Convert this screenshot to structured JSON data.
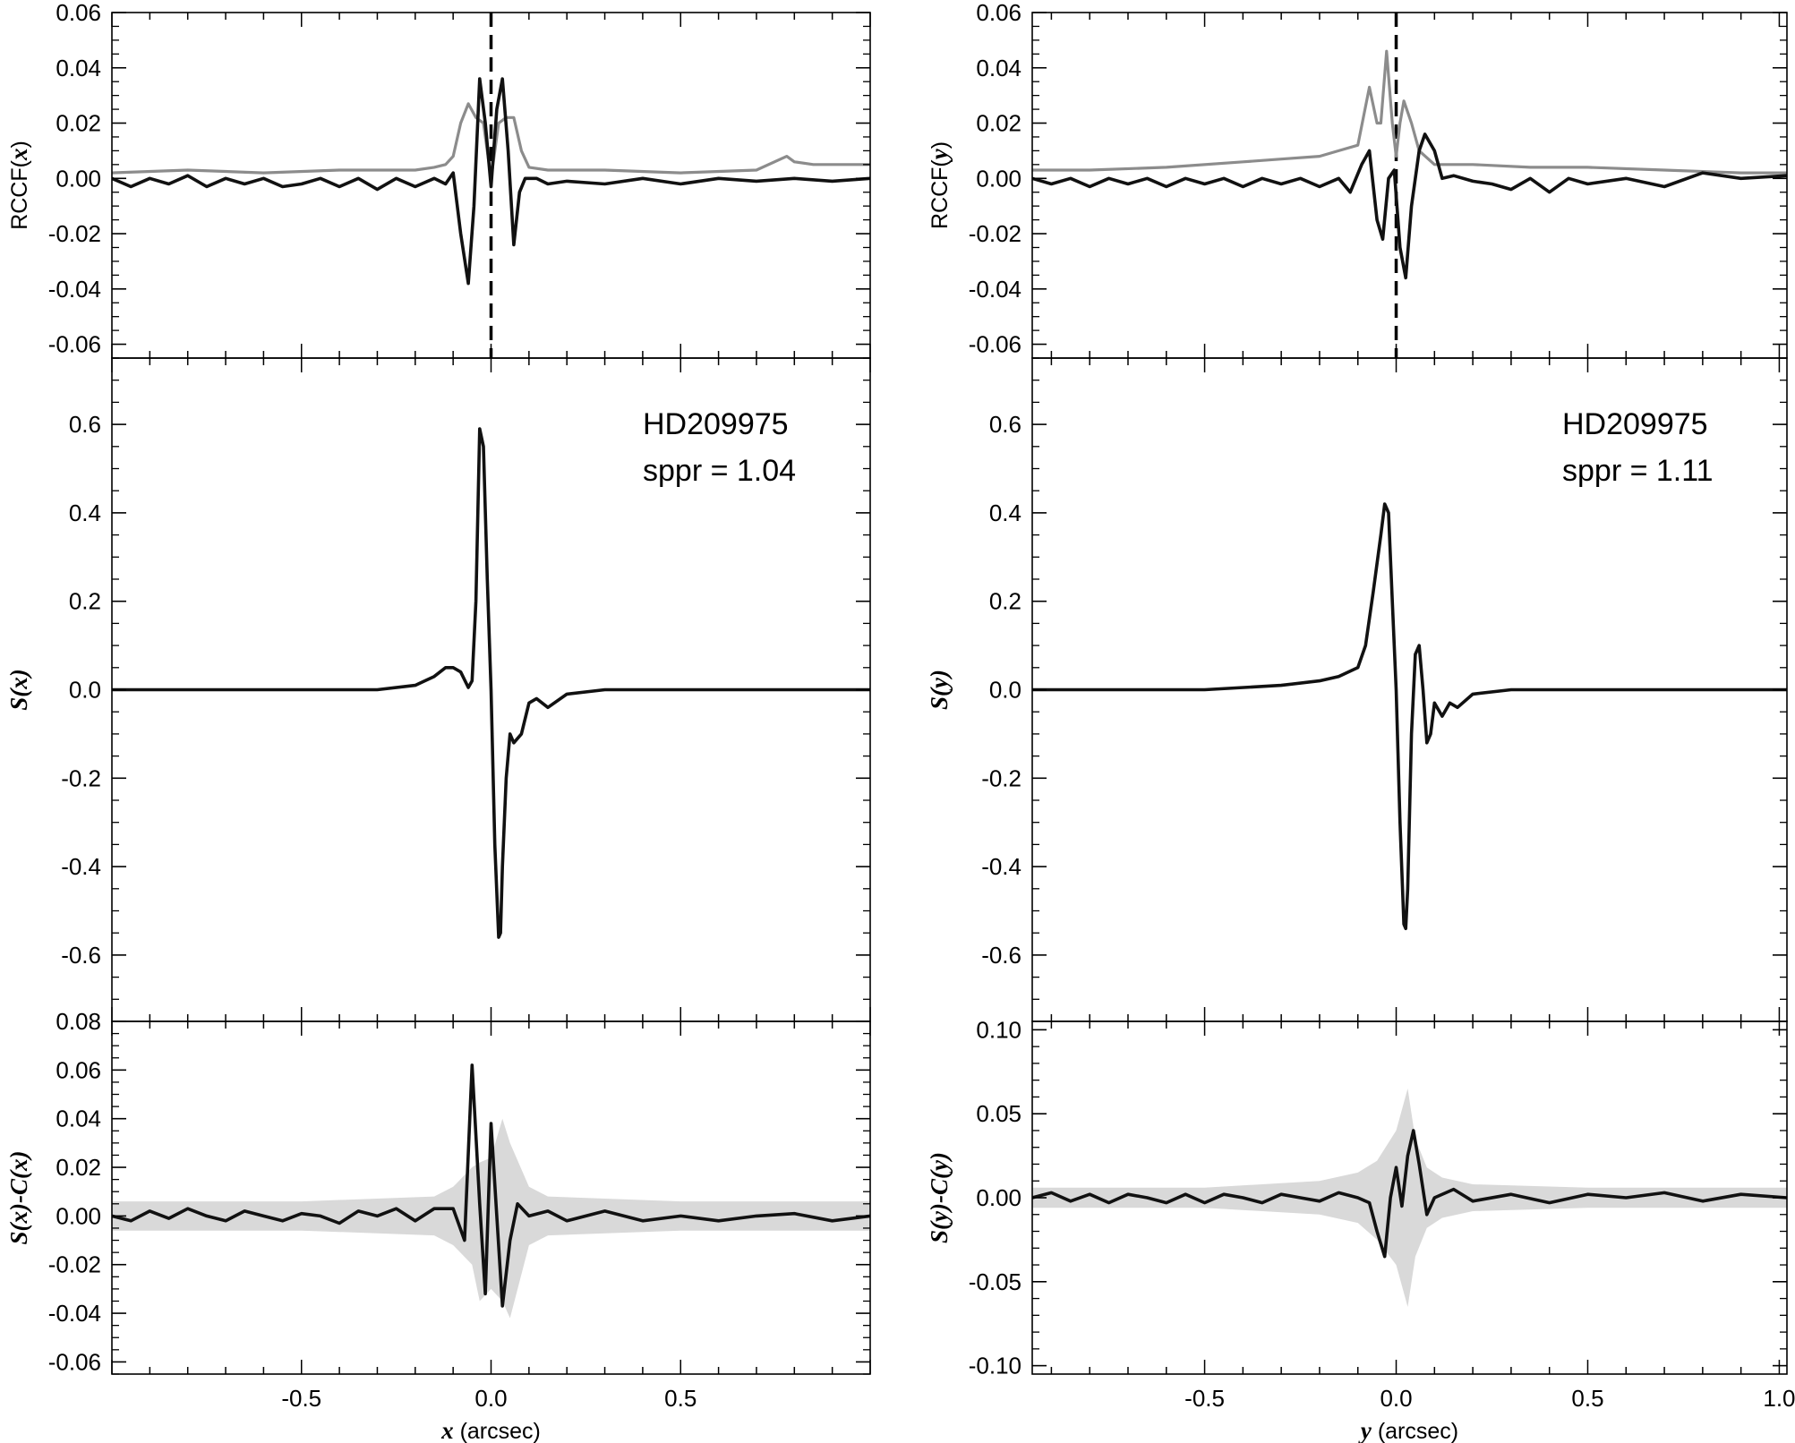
{
  "figure_colors": {
    "black_line": "#111111",
    "gray_line": "#8c8c8c",
    "band_fill": "#d9d9d9",
    "frame": "#000000"
  },
  "columns": [
    {
      "id": "x",
      "xlabel_var": "x",
      "xlabel_unit": " (arcsec)",
      "xlim": [
        -1.0,
        1.0
      ],
      "xticks": [
        -0.5,
        0.0,
        0.5
      ],
      "xtick_labels": [
        "-0.5",
        "0.0",
        "0.5"
      ]
    },
    {
      "id": "y",
      "xlabel_var": "y",
      "xlabel_unit": " (arcsec)",
      "xlim": [
        -0.95,
        1.02
      ],
      "xticks": [
        -0.5,
        0.0,
        0.5,
        1.0
      ],
      "xtick_labels": [
        "-0.5",
        "0.0",
        "0.5",
        "1.0"
      ]
    }
  ],
  "chart_data": [
    {
      "type": "line",
      "panel": "rccf-x",
      "column": 0,
      "row": 0,
      "ylabel": "RCCF(x)",
      "ylabel_parts": [
        "RCCF(",
        "x",
        ")"
      ],
      "ylim": [
        -0.065,
        0.06
      ],
      "yticks": [
        -0.06,
        -0.04,
        -0.02,
        0.0,
        0.02,
        0.04,
        0.06
      ],
      "ytick_labels": [
        "-0.06",
        "-0.04",
        "-0.02",
        "0.00",
        "0.02",
        "0.04",
        "0.06"
      ],
      "vline_x": 0.0,
      "series": [
        {
          "style": "gray",
          "x": [
            -1.0,
            -0.8,
            -0.6,
            -0.4,
            -0.2,
            -0.15,
            -0.12,
            -0.1,
            -0.08,
            -0.06,
            -0.04,
            -0.02,
            0.0,
            0.02,
            0.04,
            0.06,
            0.08,
            0.1,
            0.15,
            0.3,
            0.5,
            0.7,
            0.78,
            0.8,
            0.85,
            1.0
          ],
          "y": [
            0.002,
            0.003,
            0.002,
            0.003,
            0.003,
            0.004,
            0.005,
            0.008,
            0.02,
            0.027,
            0.022,
            0.02,
            0.0,
            0.02,
            0.022,
            0.022,
            0.01,
            0.004,
            0.003,
            0.003,
            0.002,
            0.003,
            0.008,
            0.006,
            0.005,
            0.005
          ]
        },
        {
          "style": "black",
          "x": [
            -1.0,
            -0.95,
            -0.9,
            -0.85,
            -0.8,
            -0.75,
            -0.7,
            -0.65,
            -0.6,
            -0.55,
            -0.5,
            -0.45,
            -0.4,
            -0.35,
            -0.3,
            -0.25,
            -0.2,
            -0.15,
            -0.12,
            -0.1,
            -0.08,
            -0.06,
            -0.045,
            -0.03,
            -0.015,
            0.0,
            0.015,
            0.03,
            0.045,
            0.06,
            0.075,
            0.09,
            0.12,
            0.15,
            0.2,
            0.3,
            0.4,
            0.5,
            0.6,
            0.7,
            0.8,
            0.9,
            1.0
          ],
          "y": [
            0.0,
            -0.003,
            0.0,
            -0.002,
            0.001,
            -0.003,
            0.0,
            -0.002,
            0.0,
            -0.003,
            -0.002,
            0.0,
            -0.003,
            0.0,
            -0.004,
            0.0,
            -0.003,
            0.0,
            -0.002,
            0.002,
            -0.02,
            -0.038,
            -0.01,
            0.036,
            0.02,
            -0.003,
            0.025,
            0.036,
            0.01,
            -0.024,
            -0.005,
            0.0,
            0.0,
            -0.002,
            -0.001,
            -0.002,
            0.0,
            -0.002,
            0.0,
            -0.001,
            0.0,
            -0.001,
            0.0
          ]
        }
      ]
    },
    {
      "type": "line",
      "panel": "s-x",
      "column": 0,
      "row": 1,
      "ylabel": "S(x)",
      "ylabel_parts": [
        "",
        "S(x)",
        ""
      ],
      "ylim": [
        -0.75,
        0.75
      ],
      "yticks": [
        -0.6,
        -0.4,
        -0.2,
        0.0,
        0.2,
        0.4,
        0.6
      ],
      "ytick_labels": [
        "-0.6",
        "-0.4",
        "-0.2",
        "0.0",
        "0.2",
        "0.4",
        "0.6"
      ],
      "annotation": [
        "HD209975",
        "sppr = 1.04"
      ],
      "series": [
        {
          "style": "black",
          "x": [
            -1.0,
            -0.5,
            -0.3,
            -0.2,
            -0.15,
            -0.12,
            -0.1,
            -0.08,
            -0.06,
            -0.05,
            -0.04,
            -0.03,
            -0.02,
            -0.01,
            0.0,
            0.01,
            0.02,
            0.025,
            0.03,
            0.04,
            0.05,
            0.06,
            0.08,
            0.1,
            0.12,
            0.15,
            0.2,
            0.3,
            0.5,
            1.0
          ],
          "y": [
            0.0,
            0.0,
            0.0,
            0.01,
            0.03,
            0.05,
            0.05,
            0.04,
            0.005,
            0.02,
            0.2,
            0.59,
            0.55,
            0.25,
            0.0,
            -0.35,
            -0.56,
            -0.55,
            -0.4,
            -0.2,
            -0.1,
            -0.12,
            -0.1,
            -0.03,
            -0.02,
            -0.04,
            -0.01,
            0.0,
            0.0,
            0.0
          ]
        }
      ]
    },
    {
      "type": "line",
      "panel": "resid-x",
      "column": 0,
      "row": 2,
      "ylabel": "S(x)-C(x)",
      "ylabel_parts": [
        "",
        "S(x)-C(x)",
        ""
      ],
      "ylim": [
        -0.065,
        0.08
      ],
      "yticks": [
        -0.06,
        -0.04,
        -0.02,
        0.0,
        0.02,
        0.04,
        0.06,
        0.08
      ],
      "ytick_labels": [
        "-0.06",
        "-0.04",
        "-0.02",
        "0.00",
        "0.02",
        "0.04",
        "0.06",
        "0.08"
      ],
      "band": {
        "x": [
          -1.0,
          -0.5,
          -0.15,
          -0.1,
          -0.05,
          -0.03,
          0.0,
          0.03,
          0.05,
          0.1,
          0.15,
          0.5,
          1.0
        ],
        "upper": [
          0.006,
          0.006,
          0.008,
          0.012,
          0.02,
          0.022,
          0.024,
          0.04,
          0.03,
          0.012,
          0.008,
          0.006,
          0.006
        ],
        "lower": [
          -0.006,
          -0.006,
          -0.008,
          -0.012,
          -0.02,
          -0.035,
          -0.03,
          -0.035,
          -0.042,
          -0.012,
          -0.008,
          -0.006,
          -0.006
        ]
      },
      "series": [
        {
          "style": "black",
          "x": [
            -1.0,
            -0.95,
            -0.9,
            -0.85,
            -0.8,
            -0.75,
            -0.7,
            -0.65,
            -0.6,
            -0.55,
            -0.5,
            -0.45,
            -0.4,
            -0.35,
            -0.3,
            -0.25,
            -0.2,
            -0.15,
            -0.1,
            -0.07,
            -0.05,
            -0.03,
            -0.015,
            0.0,
            0.015,
            0.03,
            0.05,
            0.07,
            0.1,
            0.15,
            0.2,
            0.3,
            0.4,
            0.5,
            0.6,
            0.7,
            0.8,
            0.9,
            1.0
          ],
          "y": [
            0.0,
            -0.002,
            0.002,
            -0.001,
            0.003,
            0.0,
            -0.002,
            0.002,
            0.0,
            -0.002,
            0.001,
            0.0,
            -0.003,
            0.002,
            0.0,
            0.003,
            -0.002,
            0.003,
            0.003,
            -0.01,
            0.062,
            0.005,
            -0.032,
            0.038,
            0.0,
            -0.037,
            -0.01,
            0.005,
            0.0,
            0.002,
            -0.002,
            0.002,
            -0.002,
            0.0,
            -0.002,
            0.0,
            0.001,
            -0.002,
            0.0
          ]
        }
      ]
    },
    {
      "type": "line",
      "panel": "rccf-y",
      "column": 1,
      "row": 0,
      "ylabel": "RCCF(y)",
      "ylabel_parts": [
        "RCCF(",
        "y",
        ")"
      ],
      "ylim": [
        -0.065,
        0.06
      ],
      "yticks": [
        -0.06,
        -0.04,
        -0.02,
        0.0,
        0.02,
        0.04,
        0.06
      ],
      "ytick_labels": [
        "-0.06",
        "-0.04",
        "-0.02",
        "0.00",
        "0.02",
        "0.04",
        "0.06"
      ],
      "vline_x": 0.0,
      "series": [
        {
          "style": "gray",
          "x": [
            -0.95,
            -0.8,
            -0.6,
            -0.4,
            -0.3,
            -0.2,
            -0.15,
            -0.1,
            -0.07,
            -0.05,
            -0.04,
            -0.025,
            -0.01,
            0.0,
            0.01,
            0.02,
            0.04,
            0.06,
            0.1,
            0.2,
            0.35,
            0.5,
            0.7,
            0.9,
            1.02
          ],
          "y": [
            0.003,
            0.003,
            0.004,
            0.006,
            0.007,
            0.008,
            0.01,
            0.012,
            0.033,
            0.02,
            0.02,
            0.046,
            0.02,
            0.008,
            0.02,
            0.028,
            0.02,
            0.01,
            0.005,
            0.005,
            0.004,
            0.004,
            0.003,
            0.002,
            0.002
          ]
        },
        {
          "style": "black",
          "x": [
            -0.95,
            -0.9,
            -0.85,
            -0.8,
            -0.75,
            -0.7,
            -0.65,
            -0.6,
            -0.55,
            -0.5,
            -0.45,
            -0.4,
            -0.35,
            -0.3,
            -0.25,
            -0.2,
            -0.15,
            -0.12,
            -0.09,
            -0.07,
            -0.05,
            -0.035,
            -0.02,
            -0.005,
            0.01,
            0.025,
            0.04,
            0.06,
            0.075,
            0.1,
            0.12,
            0.15,
            0.2,
            0.25,
            0.3,
            0.35,
            0.4,
            0.45,
            0.5,
            0.6,
            0.7,
            0.8,
            0.9,
            1.02
          ],
          "y": [
            0.0,
            -0.002,
            0.0,
            -0.003,
            0.0,
            -0.002,
            0.0,
            -0.003,
            0.0,
            -0.002,
            0.0,
            -0.003,
            0.0,
            -0.002,
            0.0,
            -0.003,
            0.0,
            -0.005,
            0.005,
            0.01,
            -0.015,
            -0.022,
            0.0,
            0.003,
            -0.025,
            -0.036,
            -0.01,
            0.01,
            0.016,
            0.01,
            0.0,
            0.001,
            -0.001,
            -0.002,
            -0.004,
            0.0,
            -0.005,
            0.0,
            -0.002,
            0.0,
            -0.003,
            0.002,
            0.0,
            0.001
          ]
        }
      ]
    },
    {
      "type": "line",
      "panel": "s-y",
      "column": 1,
      "row": 1,
      "ylabel": "S(y)",
      "ylabel_parts": [
        "",
        "S(y)",
        ""
      ],
      "ylim": [
        -0.75,
        0.75
      ],
      "yticks": [
        -0.6,
        -0.4,
        -0.2,
        0.0,
        0.2,
        0.4,
        0.6
      ],
      "ytick_labels": [
        "-0.6",
        "-0.4",
        "-0.2",
        "0.0",
        "0.2",
        "0.4",
        "0.6"
      ],
      "annotation": [
        "HD209975",
        "sppr = 1.11"
      ],
      "series": [
        {
          "style": "black",
          "x": [
            -0.95,
            -0.5,
            -0.3,
            -0.2,
            -0.15,
            -0.1,
            -0.08,
            -0.06,
            -0.04,
            -0.03,
            -0.02,
            -0.01,
            0.0,
            0.01,
            0.02,
            0.025,
            0.03,
            0.04,
            0.05,
            0.06,
            0.07,
            0.08,
            0.09,
            0.1,
            0.12,
            0.14,
            0.16,
            0.2,
            0.3,
            0.5,
            1.02
          ],
          "y": [
            0.0,
            0.0,
            0.01,
            0.02,
            0.03,
            0.05,
            0.1,
            0.22,
            0.35,
            0.42,
            0.4,
            0.2,
            0.0,
            -0.3,
            -0.53,
            -0.54,
            -0.45,
            -0.1,
            0.08,
            0.1,
            0.0,
            -0.12,
            -0.1,
            -0.03,
            -0.06,
            -0.03,
            -0.04,
            -0.01,
            0.0,
            0.0,
            0.0
          ]
        }
      ]
    },
    {
      "type": "line",
      "panel": "resid-y",
      "column": 1,
      "row": 2,
      "ylabel": "S(y)-C(y)",
      "ylabel_parts": [
        "",
        "S(y)-C(y)",
        ""
      ],
      "ylim": [
        -0.105,
        0.105
      ],
      "yticks": [
        -0.1,
        -0.05,
        0.0,
        0.05,
        0.1
      ],
      "ytick_labels": [
        "-0.10",
        "-0.05",
        "0.00",
        "0.05",
        "0.10"
      ],
      "band": {
        "x": [
          -0.95,
          -0.5,
          -0.2,
          -0.1,
          -0.05,
          0.0,
          0.03,
          0.05,
          0.08,
          0.12,
          0.2,
          0.5,
          1.02
        ],
        "upper": [
          0.006,
          0.006,
          0.01,
          0.015,
          0.022,
          0.04,
          0.065,
          0.035,
          0.018,
          0.012,
          0.008,
          0.006,
          0.006
        ],
        "lower": [
          -0.006,
          -0.006,
          -0.01,
          -0.015,
          -0.025,
          -0.04,
          -0.065,
          -0.035,
          -0.018,
          -0.012,
          -0.008,
          -0.006,
          -0.006
        ]
      },
      "series": [
        {
          "style": "black",
          "x": [
            -0.95,
            -0.9,
            -0.85,
            -0.8,
            -0.75,
            -0.7,
            -0.65,
            -0.6,
            -0.55,
            -0.5,
            -0.45,
            -0.4,
            -0.35,
            -0.3,
            -0.25,
            -0.2,
            -0.15,
            -0.1,
            -0.07,
            -0.05,
            -0.03,
            -0.015,
            0.0,
            0.015,
            0.03,
            0.045,
            0.06,
            0.08,
            0.1,
            0.15,
            0.2,
            0.3,
            0.4,
            0.5,
            0.6,
            0.7,
            0.8,
            0.9,
            1.02
          ],
          "y": [
            0.0,
            0.003,
            -0.002,
            0.002,
            -0.003,
            0.002,
            0.0,
            -0.003,
            0.002,
            -0.003,
            0.002,
            0.0,
            -0.003,
            0.002,
            0.0,
            -0.002,
            0.003,
            0.0,
            -0.003,
            -0.02,
            -0.035,
            0.0,
            0.018,
            -0.005,
            0.025,
            0.04,
            0.02,
            -0.01,
            0.0,
            0.005,
            -0.002,
            0.002,
            -0.003,
            0.002,
            0.0,
            0.003,
            -0.002,
            0.002,
            0.0
          ]
        }
      ]
    }
  ]
}
